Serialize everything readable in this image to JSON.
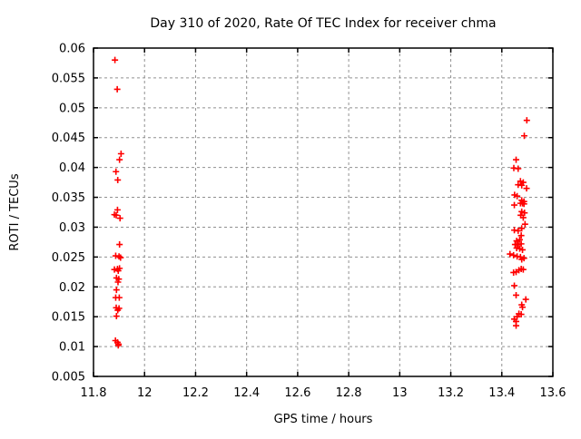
{
  "chart_data": {
    "type": "scatter",
    "title": "Day 310 of 2020, Rate Of TEC Index for receiver chma",
    "xlabel": "GPS time / hours",
    "ylabel": "ROTI / TECUs",
    "xlim": [
      11.8,
      13.6
    ],
    "ylim": [
      0.005,
      0.06
    ],
    "grid": true,
    "grid_color": "#909090",
    "frame_color": "#000000",
    "background_color": "#ffffff",
    "legend": "none",
    "xticks": {
      "values": [
        11.8,
        12,
        12.2,
        12.4,
        12.6,
        12.8,
        13,
        13.2,
        13.4,
        13.6
      ],
      "labels": [
        "11.8",
        "12",
        "12.2",
        "12.4",
        "12.6",
        "12.8",
        "13",
        "13.2",
        "13.4",
        "13.6"
      ]
    },
    "yticks": {
      "values": [
        0.005,
        0.01,
        0.015,
        0.02,
        0.025,
        0.03,
        0.035,
        0.04,
        0.045,
        0.05,
        0.055,
        0.06
      ],
      "labels": [
        "0.005",
        "0.01",
        "0.015",
        "0.02",
        "0.025",
        "0.03",
        "0.035",
        "0.04",
        "0.045",
        "0.05",
        "0.055",
        "0.06"
      ]
    },
    "series": [
      {
        "marker": "plus",
        "color": "#ff0000",
        "points": [
          [
            11.884,
            0.058
          ],
          [
            11.893,
            0.0531
          ],
          [
            11.908,
            0.0423
          ],
          [
            11.902,
            0.0413
          ],
          [
            11.888,
            0.0393
          ],
          [
            11.895,
            0.0379
          ],
          [
            11.894,
            0.0329
          ],
          [
            11.882,
            0.0321
          ],
          [
            11.889,
            0.032
          ],
          [
            11.904,
            0.0315
          ],
          [
            11.902,
            0.0271
          ],
          [
            11.887,
            0.0252
          ],
          [
            11.9,
            0.0251
          ],
          [
            11.906,
            0.0249
          ],
          [
            11.882,
            0.0229
          ],
          [
            11.894,
            0.023
          ],
          [
            11.897,
            0.0227
          ],
          [
            11.902,
            0.0231
          ],
          [
            11.89,
            0.0215
          ],
          [
            11.899,
            0.0213
          ],
          [
            11.896,
            0.0208
          ],
          [
            11.89,
            0.0195
          ],
          [
            11.887,
            0.0182
          ],
          [
            11.901,
            0.0182
          ],
          [
            11.889,
            0.0165
          ],
          [
            11.9,
            0.0164
          ],
          [
            11.895,
            0.0161
          ],
          [
            11.89,
            0.0151
          ],
          [
            11.886,
            0.011
          ],
          [
            11.894,
            0.0107
          ],
          [
            11.898,
            0.0104
          ],
          [
            11.897,
            0.0102
          ],
          [
            13.498,
            0.0479
          ],
          [
            13.488,
            0.0453
          ],
          [
            13.456,
            0.0413
          ],
          [
            13.447,
            0.0399
          ],
          [
            13.464,
            0.0398
          ],
          [
            13.473,
            0.0377
          ],
          [
            13.484,
            0.0375
          ],
          [
            13.464,
            0.0371
          ],
          [
            13.478,
            0.037
          ],
          [
            13.497,
            0.0365
          ],
          [
            13.45,
            0.0354
          ],
          [
            13.46,
            0.0352
          ],
          [
            13.478,
            0.0345
          ],
          [
            13.487,
            0.0343
          ],
          [
            13.449,
            0.0337
          ],
          [
            13.473,
            0.034
          ],
          [
            13.481,
            0.034
          ],
          [
            13.487,
            0.0339
          ],
          [
            13.478,
            0.0326
          ],
          [
            13.489,
            0.0324
          ],
          [
            13.474,
            0.032
          ],
          [
            13.484,
            0.0316
          ],
          [
            13.491,
            0.0305
          ],
          [
            13.478,
            0.0298
          ],
          [
            13.449,
            0.0295
          ],
          [
            13.464,
            0.0294
          ],
          [
            13.476,
            0.0286
          ],
          [
            13.47,
            0.0279
          ],
          [
            13.458,
            0.0277
          ],
          [
            13.452,
            0.0271
          ],
          [
            13.464,
            0.0271
          ],
          [
            13.476,
            0.0272
          ],
          [
            13.458,
            0.0265
          ],
          [
            13.47,
            0.0264
          ],
          [
            13.481,
            0.0262
          ],
          [
            13.432,
            0.0255
          ],
          [
            13.446,
            0.0253
          ],
          [
            13.46,
            0.0251
          ],
          [
            13.473,
            0.025
          ],
          [
            13.487,
            0.0248
          ],
          [
            13.478,
            0.0246
          ],
          [
            13.476,
            0.023
          ],
          [
            13.484,
            0.0229
          ],
          [
            13.467,
            0.0228
          ],
          [
            13.456,
            0.0225
          ],
          [
            13.446,
            0.0224
          ],
          [
            13.449,
            0.0202
          ],
          [
            13.456,
            0.0186
          ],
          [
            13.494,
            0.0179
          ],
          [
            13.478,
            0.017
          ],
          [
            13.481,
            0.0166
          ],
          [
            13.467,
            0.0155
          ],
          [
            13.476,
            0.0154
          ],
          [
            13.46,
            0.015
          ],
          [
            13.449,
            0.0146
          ],
          [
            13.456,
            0.0142
          ],
          [
            13.456,
            0.0135
          ]
        ]
      }
    ]
  }
}
